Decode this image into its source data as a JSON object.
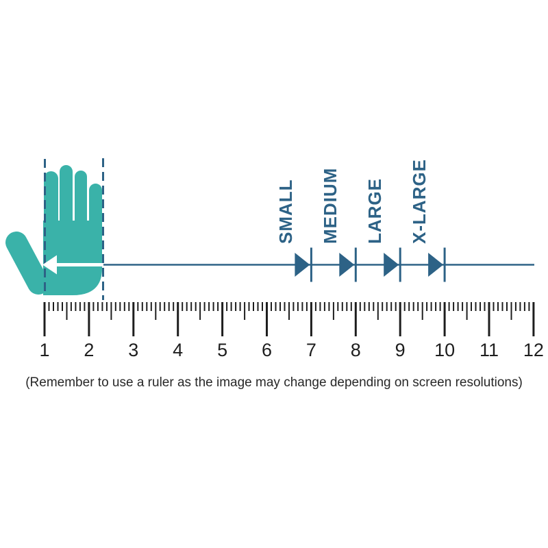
{
  "caption": "(Remember to use a ruler as the image may change depending on screen resolutions)",
  "sizes": [
    {
      "label": "SMALL",
      "ruler_value": 7
    },
    {
      "label": "MEDIUM",
      "ruler_value": 8
    },
    {
      "label": "LARGE",
      "ruler_value": 9
    },
    {
      "label": "X-LARGE",
      "ruler_value": 10
    }
  ],
  "ruler": {
    "min": 1,
    "max": 12,
    "minor_step": 0.1,
    "numbers": [
      1,
      2,
      3,
      4,
      5,
      6,
      7,
      8,
      9,
      10,
      11,
      12
    ]
  },
  "icons": {
    "hand": "hand-silhouette-icon",
    "measure_arrow": "left-arrow-icon",
    "size_marker": "right-triangle-marker-icon"
  },
  "colors": {
    "teal": "#3ab2a9",
    "blue": "#2d6286",
    "ink": "#1e1e1e",
    "caption_ink": "#282828",
    "white": "#ffffff"
  }
}
